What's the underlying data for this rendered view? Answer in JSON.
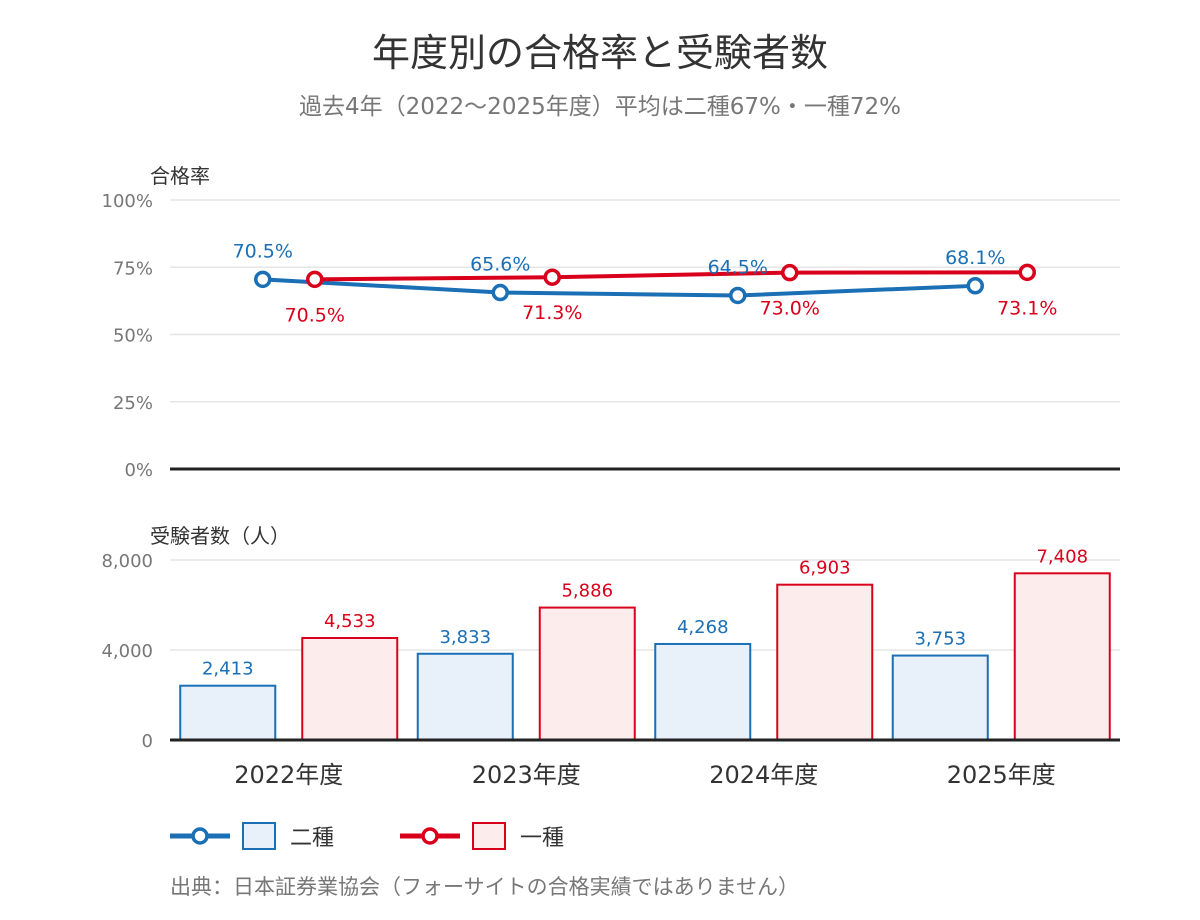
{
  "title": "年度別の合格率と受験者数",
  "subtitle": "過去4年（2022〜2025年度）平均は二種67%・一種72%",
  "source": "出典：日本証券業協会（フォーサイトの合格実績ではありません）",
  "colors": {
    "nishu": "#1a6fb5",
    "isshu": "#d9001b",
    "nishu_fill": "#e8f1fa",
    "isshu_fill": "#fdecec",
    "grid": "#e6e6e6",
    "axis": "#222222"
  },
  "legend": [
    {
      "label": "二種",
      "color_key": "nishu"
    },
    {
      "label": "一種",
      "color_key": "isshu"
    }
  ],
  "chart_data": [
    {
      "type": "line",
      "ylabel": "合格率",
      "ylim": [
        0,
        100
      ],
      "yticks": [
        "0%",
        "25%",
        "50%",
        "75%",
        "100%"
      ],
      "ytick_values": [
        0,
        25,
        50,
        75,
        100
      ],
      "categories": [
        "2022年度",
        "2023年度",
        "2024年度",
        "2025年度"
      ],
      "grid": true,
      "series": [
        {
          "name": "二種",
          "values": [
            70.5,
            65.6,
            64.5,
            68.1
          ],
          "labels": [
            "70.5%",
            "65.6%",
            "64.5%",
            "68.1%"
          ]
        },
        {
          "name": "一種",
          "values": [
            70.5,
            71.3,
            73.0,
            73.1
          ],
          "labels": [
            "70.5%",
            "71.3%",
            "73.0%",
            "73.1%"
          ]
        }
      ]
    },
    {
      "type": "bar",
      "ylabel": "受験者数（人）",
      "ylim": [
        0,
        8000
      ],
      "yticks": [
        "0",
        "4,000",
        "8,000"
      ],
      "ytick_values": [
        0,
        4000,
        8000
      ],
      "categories": [
        "2022年度",
        "2023年度",
        "2024年度",
        "2025年度"
      ],
      "grid": true,
      "series": [
        {
          "name": "二種",
          "values": [
            2413,
            3833,
            4268,
            3753
          ],
          "labels": [
            "2,413",
            "3,833",
            "4,268",
            "3,753"
          ]
        },
        {
          "name": "一種",
          "values": [
            4533,
            5886,
            6903,
            7408
          ],
          "labels": [
            "4,533",
            "5,886",
            "6,903",
            "7,408"
          ]
        }
      ]
    }
  ]
}
